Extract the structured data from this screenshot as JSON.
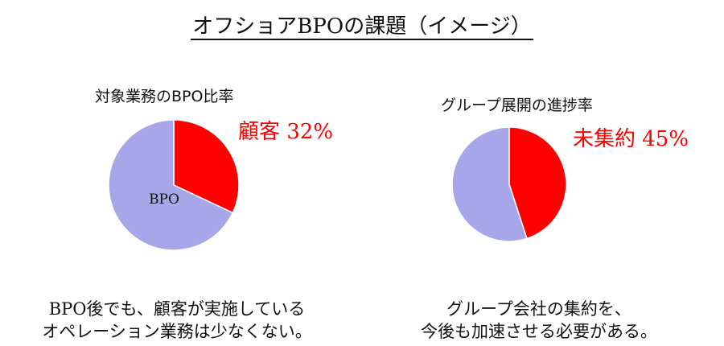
{
  "title": "オフショアBPOの課題（イメージ）",
  "colors": {
    "primary": "#ff0000",
    "secondary": "#a6a6e8",
    "stroke": "#ffffff"
  },
  "chart_data": [
    {
      "type": "pie",
      "title": "対象業務のBPO比率",
      "highlight_label": "顧客 32%",
      "slice_label": "BPO",
      "slices": [
        {
          "label": "顧客",
          "value": 32,
          "color": "#ff0000"
        },
        {
          "label": "BPO",
          "value": 68,
          "color": "#a6a6e8"
        }
      ]
    },
    {
      "type": "pie",
      "title": "グループ展開の進捗率",
      "highlight_label": "未集約 45%",
      "slices": [
        {
          "label": "未集約",
          "value": 45,
          "color": "#ff0000"
        },
        {
          "label": "",
          "value": 55,
          "color": "#a6a6e8"
        }
      ]
    }
  ],
  "captions": {
    "left": [
      "BPO後でも、顧客が実施している",
      "オペレーション業務は少なくない。"
    ],
    "right": [
      "グループ会社の集約を、",
      "今後も加速させる必要がある。"
    ]
  }
}
